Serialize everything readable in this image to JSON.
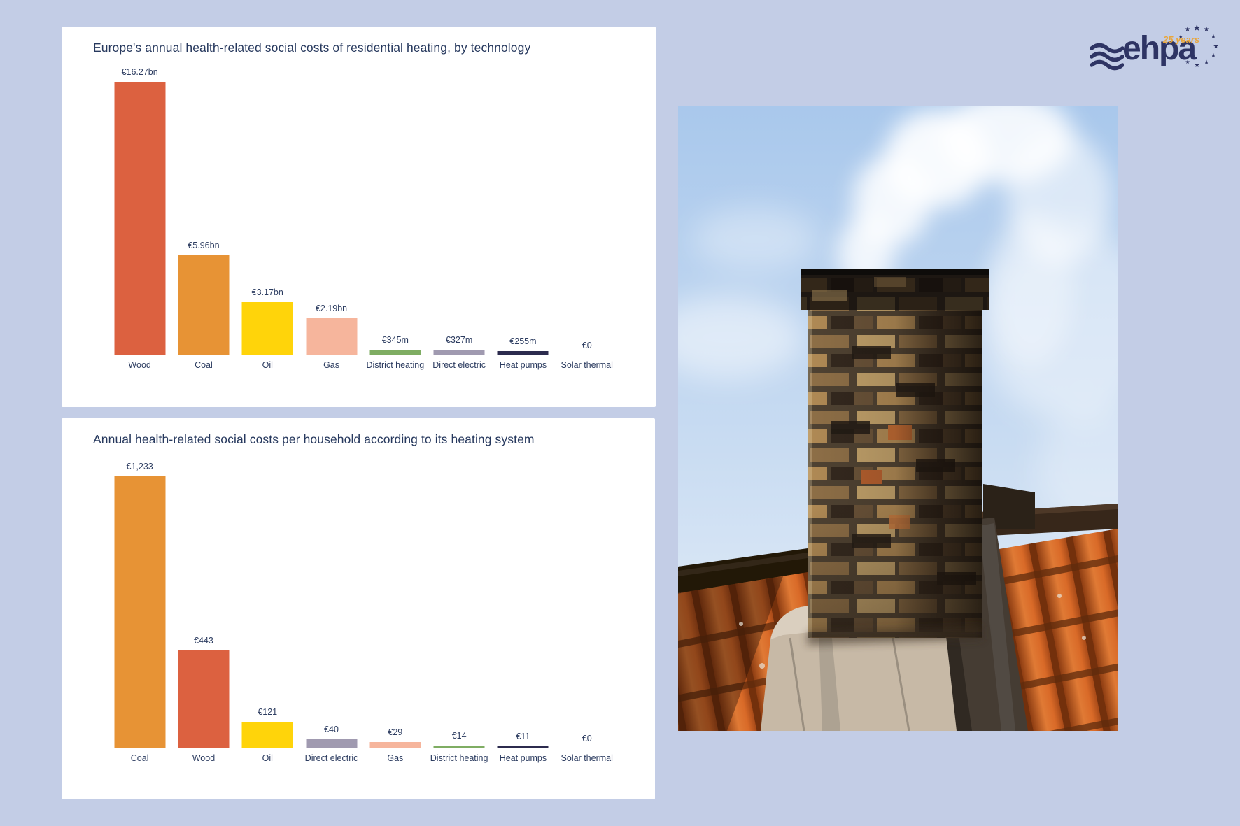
{
  "page": {
    "background_color": "#C3CDE6",
    "card_color": "#FFFFFF",
    "text_color": "#2C3C60"
  },
  "logo": {
    "wordmark": "ehpa",
    "anniversary": "25 years",
    "brand_color": "#2E3464",
    "accent_color": "#E9A63C"
  },
  "chart_data": [
    {
      "type": "bar",
      "title": "Europe's annual health-related social costs of residential heating, by technology",
      "categories": [
        "Wood",
        "Coal",
        "Oil",
        "Gas",
        "District heating",
        "Direct electric",
        "Heat pumps",
        "Solar thermal"
      ],
      "values": [
        16.27,
        5.96,
        3.17,
        2.19,
        0.345,
        0.327,
        0.255,
        0
      ],
      "unit": "billion euro per year",
      "value_labels": [
        "€16.27bn",
        "€5.96bn",
        "€3.17bn",
        "€2.19bn",
        "€345m",
        "€327m",
        "€255m",
        "€0"
      ],
      "bar_colors": [
        "#DC6140",
        "#E79335",
        "#FFD40A",
        "#F6B59C",
        "#7FAD63",
        "#A09AB0",
        "#2C2B4E",
        null
      ],
      "xlabel": "",
      "ylabel": "",
      "ylim": [
        0,
        16.27
      ],
      "grid": false,
      "legend": false
    },
    {
      "type": "bar",
      "title": "Annual health-related social costs per household according to its heating system",
      "categories": [
        "Coal",
        "Wood",
        "Oil",
        "Direct electric",
        "Gas",
        "District heating",
        "Heat pumps",
        "Solar thermal"
      ],
      "values": [
        1233,
        443,
        121,
        40,
        29,
        14,
        11,
        0
      ],
      "unit": "euro per household per year",
      "value_labels": [
        "€1,233",
        "€443",
        "€121",
        "€40",
        "€29",
        "€14",
        "€11",
        "€0"
      ],
      "bar_colors": [
        "#E79335",
        "#DC6140",
        "#FFD40A",
        "#A09AB0",
        "#F6B59C",
        "#7FAD63",
        "#2C2B4E",
        null
      ],
      "xlabel": "",
      "ylabel": "",
      "ylim": [
        0,
        1233
      ],
      "grid": false,
      "legend": false
    }
  ],
  "photo": {
    "description": "Sooty brick chimney with white smoke rising, on an orange tiled roof against a blue sky"
  }
}
